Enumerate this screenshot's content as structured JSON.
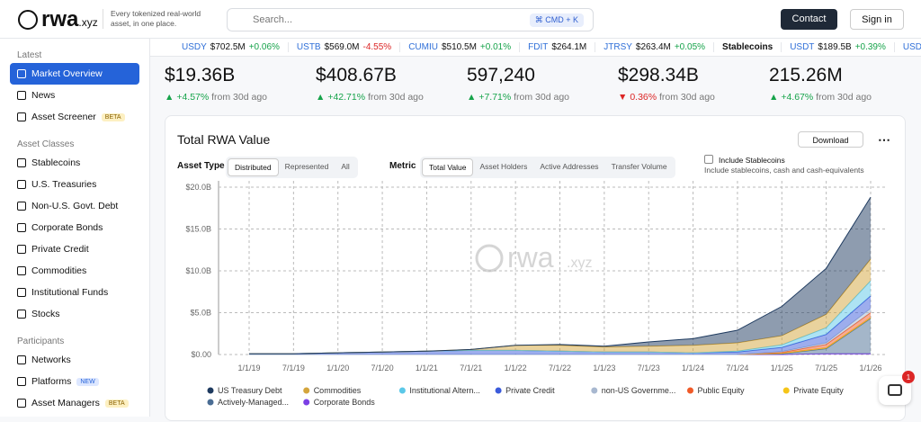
{
  "header": {
    "logo": "rwa",
    "logo_suffix": ".xyz",
    "tagline": "Every tokenized real-world asset, in one place.",
    "search": "Search...",
    "shortcut": "⌘ CMD + K",
    "contact": "Contact",
    "signin": "Sign in"
  },
  "sidebar": [
    {
      "title": "Latest",
      "items": [
        {
          "label": "Market Overview",
          "selected": true
        },
        {
          "label": "News"
        },
        {
          "label": "Asset Screener",
          "badge": "BETA"
        }
      ]
    },
    {
      "title": "Asset Classes",
      "items": [
        {
          "label": "Stablecoins"
        },
        {
          "label": "U.S. Treasuries"
        },
        {
          "label": "Non-U.S. Govt. Debt"
        },
        {
          "label": "Corporate Bonds"
        },
        {
          "label": "Private Credit"
        },
        {
          "label": "Commodities"
        },
        {
          "label": "Institutional Funds"
        },
        {
          "label": "Stocks"
        }
      ]
    },
    {
      "title": "Participants",
      "items": [
        {
          "label": "Networks"
        },
        {
          "label": "Platforms",
          "badge": "NEW"
        },
        {
          "label": "Asset Managers",
          "badge": "BETA"
        }
      ]
    }
  ],
  "ticker": [
    {
      "symbol": "USDY",
      "value": "$702.5M",
      "change": "+0.06%",
      "direction": "up"
    },
    {
      "symbol": "USTB",
      "value": "$569.0M",
      "change": "-4.55%",
      "direction": "down"
    },
    {
      "symbol": "CUMIU",
      "value": "$510.5M",
      "change": "+0.01%",
      "direction": "up"
    },
    {
      "symbol": "FDIT",
      "value": "$264.1M"
    },
    {
      "symbol": "JTRSY",
      "value": "$263.4M",
      "change": "+0.05%",
      "direction": "up"
    },
    {
      "group": "Stablecoins"
    },
    {
      "symbol": "USDT",
      "value": "$189.5B",
      "change": "+0.39%",
      "direction": "up"
    },
    {
      "symbol": "USDC"
    }
  ],
  "stats": [
    {
      "value": "$19.36B",
      "change": "+4.57%",
      "direction": "up",
      "suffix": "from 30d ago"
    },
    {
      "value": "$408.67B",
      "change": "+42.71%",
      "direction": "up",
      "suffix": "from 30d ago"
    },
    {
      "value": "597,240",
      "change": "+7.71%",
      "direction": "up",
      "suffix": "from 30d ago"
    },
    {
      "value": "$298.34B",
      "change": "0.36%",
      "direction": "down",
      "suffix": "from 30d ago"
    },
    {
      "value": "215.26M",
      "change": "+4.67%",
      "direction": "up",
      "suffix": "from 30d ago"
    }
  ],
  "card": {
    "title": "Total RWA Value",
    "download": "Download",
    "asset_type_label": "Asset Type",
    "asset_types": [
      "Distributed",
      "Represented",
      "All"
    ],
    "asset_type_selected": 0,
    "metric_label": "Metric",
    "metrics": [
      "Total Value",
      "Asset Holders",
      "Active Addresses",
      "Transfer Volume"
    ],
    "metric_selected": 0,
    "checkbox": "Include Stablecoins",
    "checkbox_note": "Include stablecoins, cash and cash-equivalents",
    "watermark": "rwa",
    "watermark_suffix": ".xyz"
  },
  "chat_badge": "1",
  "chart_data": {
    "type": "stacked_area",
    "categories": [
      "1/1/19",
      "7/1/19",
      "1/1/20",
      "7/1/20",
      "1/1/21",
      "7/1/21",
      "1/1/22",
      "7/1/22",
      "1/1/23",
      "7/1/23",
      "1/1/24",
      "7/1/24",
      "1/1/25",
      "7/1/25",
      "1/1/26"
    ],
    "ylim": [
      0,
      20.75
    ],
    "yticks": [
      {
        "value": 0,
        "label": "$0.00"
      },
      {
        "value": 5,
        "label": "$5.0B"
      },
      {
        "value": 10,
        "label": "$10.0B"
      },
      {
        "value": 15,
        "label": "$15.0B"
      },
      {
        "value": 20,
        "label": "$20.0B"
      }
    ],
    "grid": true,
    "series": [
      {
        "name": "US Treasury Debt",
        "color": "#1e3a5f",
        "values": [
          0,
          0,
          0,
          0,
          0,
          0,
          0,
          0.1,
          0.1,
          0.5,
          0.8,
          1.5,
          3.5,
          5.5,
          7.4
        ]
      },
      {
        "name": "Commodities",
        "color": "#d4a53c",
        "values": [
          0,
          0,
          0,
          0,
          0,
          0.1,
          0.6,
          0.7,
          0.6,
          0.7,
          0.9,
          1.0,
          1.1,
          1.6,
          2.6
        ]
      },
      {
        "name": "Institutional Altern...",
        "color": "#5bc8e8",
        "values": [
          0,
          0,
          0,
          0,
          0,
          0,
          0,
          0,
          0,
          0,
          0,
          0.1,
          0.3,
          0.8,
          1.8
        ]
      },
      {
        "name": "Private Credit",
        "color": "#3b5bdb",
        "values": [
          0.1,
          0.1,
          0.2,
          0.3,
          0.4,
          0.5,
          0.5,
          0.4,
          0.3,
          0.3,
          0.2,
          0.3,
          0.5,
          1.0,
          1.5
        ]
      },
      {
        "name": "non-US Governme...",
        "color": "#a8b8d0",
        "values": [
          0,
          0,
          0,
          0,
          0,
          0,
          0,
          0,
          0,
          0,
          0,
          0,
          0.1,
          0.2,
          0.5
        ]
      },
      {
        "name": "Public Equity",
        "color": "#f05a28",
        "values": [
          0,
          0,
          0,
          0,
          0,
          0,
          0,
          0,
          0,
          0,
          0,
          0,
          0.1,
          0.4,
          0.6
        ]
      },
      {
        "name": "Private Equity",
        "color": "#f5c518",
        "values": [
          0,
          0,
          0,
          0,
          0,
          0,
          0,
          0,
          0,
          0,
          0,
          0,
          0.05,
          0.1,
          0.1
        ]
      },
      {
        "name": "Actively-Managed...",
        "color": "#4a6d94",
        "values": [
          0,
          0,
          0,
          0,
          0,
          0,
          0,
          0,
          0,
          0,
          0,
          0,
          0.1,
          0.6,
          4.2
        ]
      },
      {
        "name": "Corporate Bonds",
        "color": "#7b3fe4",
        "values": [
          0,
          0,
          0,
          0,
          0,
          0,
          0,
          0,
          0,
          0,
          0,
          0,
          0,
          0.1,
          0.1
        ]
      }
    ]
  }
}
